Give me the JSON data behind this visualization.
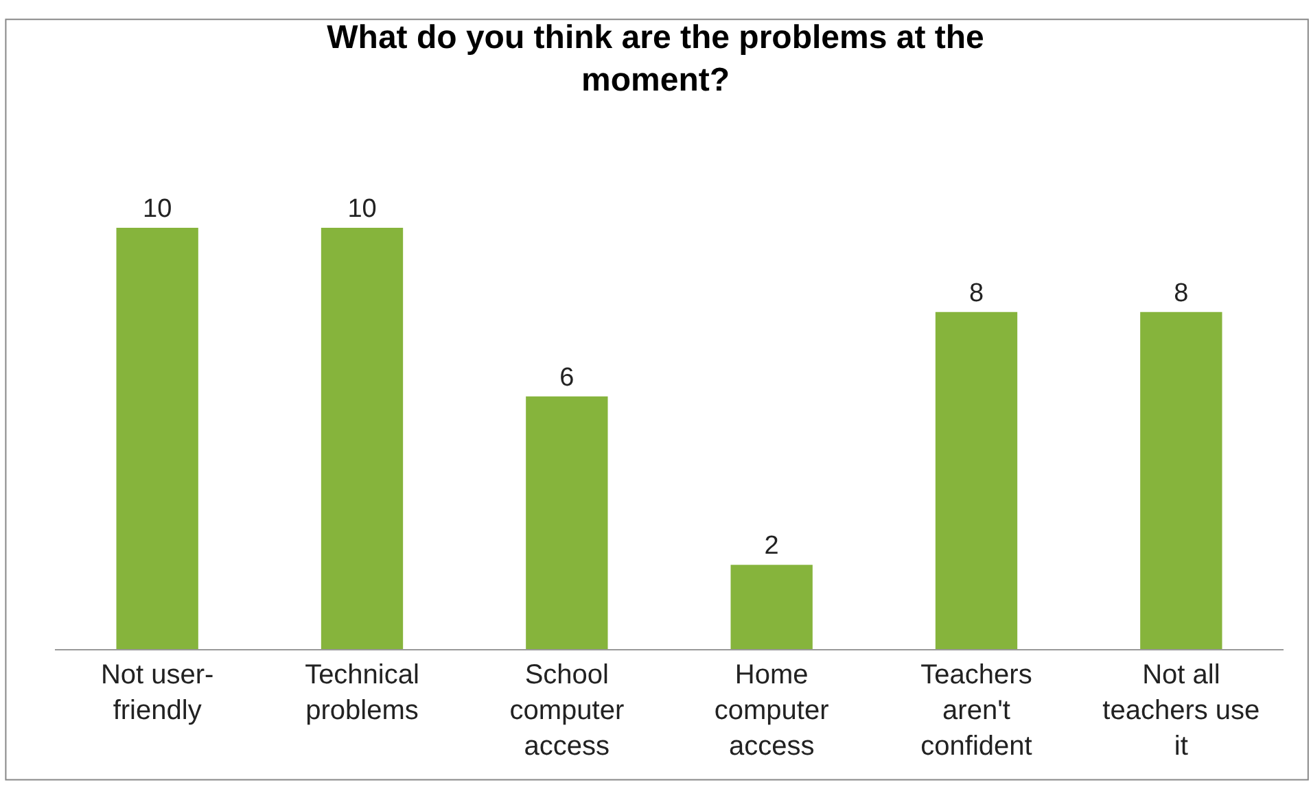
{
  "chart_data": {
    "type": "bar",
    "title": "What do you think are the problems at the moment?",
    "categories": [
      "Not user-friendly",
      "Technical problems",
      "School computer access",
      "Home computer access",
      "Teachers aren't confident",
      "Not all teachers use it"
    ],
    "values": [
      10,
      10,
      6,
      2,
      8,
      8
    ],
    "color": "#86b43c",
    "data_labels": true
  }
}
